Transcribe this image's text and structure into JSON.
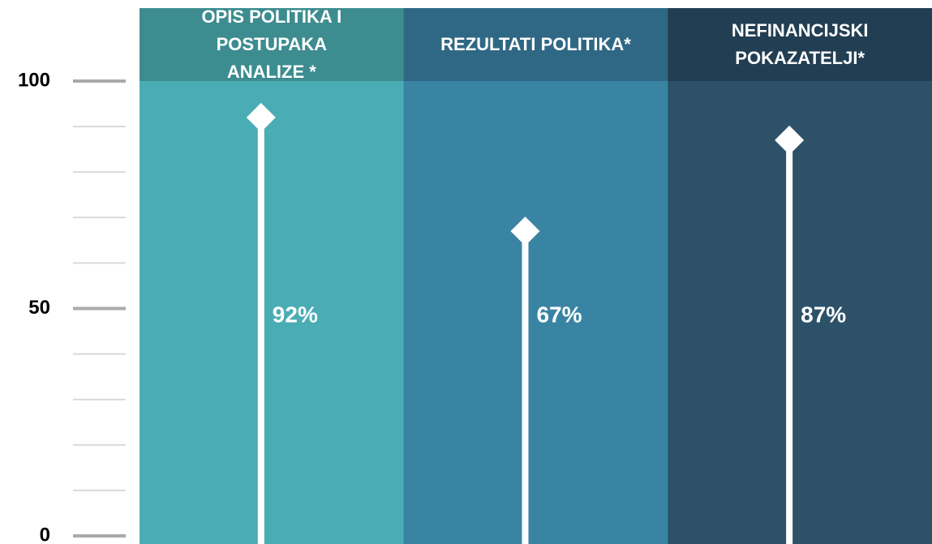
{
  "chart_data": {
    "type": "lollipop",
    "categories": [
      "OPIS POLITIKA I\nPOSTUPAKA\nANALIZE *",
      "REZULTATI POLITIKA*",
      "NEFINANCIJSKI\nPOKAZATELJI*"
    ],
    "values": [
      92,
      67,
      87
    ],
    "value_labels": [
      "92%",
      "67%",
      "87%"
    ],
    "colors": [
      "#4aacb4",
      "#3a84a3",
      "#2d5169"
    ],
    "header_colors": [
      "#3d8c8f",
      "#2f6884",
      "#223e52"
    ],
    "marker_color": "#ffffff",
    "ylim": [
      0,
      100
    ],
    "yticks": [
      0,
      50,
      100
    ],
    "minor_yticks": [
      10,
      20,
      30,
      40,
      60,
      70,
      80,
      90
    ]
  }
}
